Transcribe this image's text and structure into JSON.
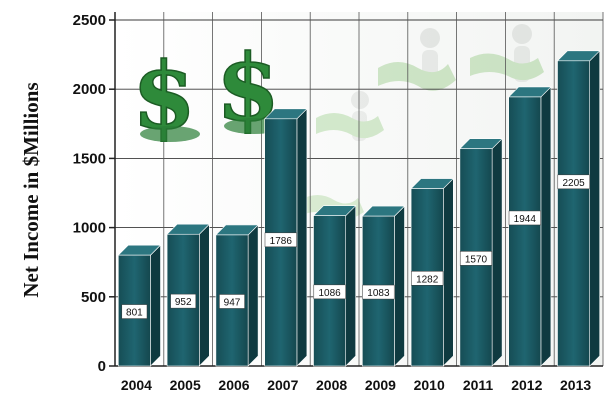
{
  "chart_data": {
    "type": "bar",
    "ylabel": "Net Income in $Millions",
    "xlabel": "",
    "categories": [
      "2004",
      "2005",
      "2006",
      "2007",
      "2008",
      "2009",
      "2010",
      "2011",
      "2012",
      "2013"
    ],
    "values": [
      801,
      952,
      947,
      1786,
      1086,
      1083,
      1282,
      1570,
      1944,
      2205
    ],
    "data_labels": [
      "801",
      "952",
      "947",
      "1786",
      "1086",
      "1083",
      "1282",
      "1570",
      "1944",
      "2205"
    ],
    "y_ticks": [
      0,
      500,
      1000,
      1500,
      2000,
      2500
    ],
    "y_tick_labels": [
      "0",
      "500",
      "1000",
      "1500",
      "2000",
      "2500"
    ],
    "ylim": [
      0,
      2500
    ],
    "grid": true,
    "bar_color": "#1d5d65",
    "decoration": {
      "dollar_symbol": "$",
      "dollar_color": "#2e8a3a"
    }
  }
}
